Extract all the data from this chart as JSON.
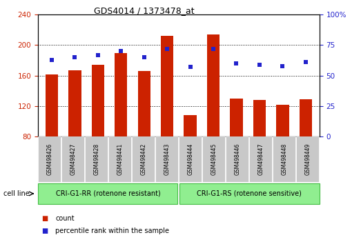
{
  "title": "GDS4014 / 1373478_at",
  "samples": [
    "GSM498426",
    "GSM498427",
    "GSM498428",
    "GSM498441",
    "GSM498442",
    "GSM498443",
    "GSM498444",
    "GSM498445",
    "GSM498446",
    "GSM498447",
    "GSM498448",
    "GSM498449"
  ],
  "counts": [
    162,
    167,
    174,
    190,
    166,
    212,
    108,
    214,
    130,
    128,
    122,
    129
  ],
  "percentile_ranks": [
    63,
    65,
    67,
    70,
    65,
    72,
    57,
    72,
    60,
    59,
    58,
    61
  ],
  "group1_label": "CRI-G1-RR (rotenone resistant)",
  "group2_label": "CRI-G1-RS (rotenone sensitive)",
  "group_color": "#90EE90",
  "group_edge_color": "#44BB44",
  "bar_color": "#CC2200",
  "dot_color": "#2222CC",
  "ylim_left": [
    80,
    240
  ],
  "ylim_right": [
    0,
    100
  ],
  "yticks_left": [
    80,
    120,
    160,
    200,
    240
  ],
  "yticks_right": [
    0,
    25,
    50,
    75,
    100
  ],
  "ytick_labels_right": [
    "0",
    "25",
    "50",
    "75",
    "100%"
  ],
  "cell_line_label": "cell line",
  "legend_count": "count",
  "legend_percentile": "percentile rank within the sample",
  "gray_box_color": "#C8C8C8",
  "title_fontsize": 9,
  "axis_fontsize": 7.5,
  "label_fontsize": 5.5,
  "group_fontsize": 7,
  "legend_fontsize": 7
}
